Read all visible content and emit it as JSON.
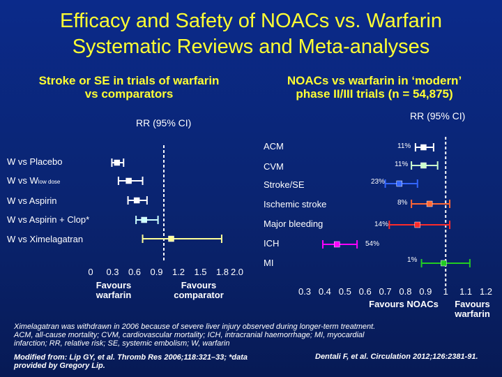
{
  "slide": {
    "title_line1": "Efficacy and Safety of NOACs vs. Warfarin",
    "title_line2": "Systematic Reviews and Meta-analyses"
  },
  "left_panel": {
    "heading_line1": "Stroke or SE in trials of warfarin",
    "heading_line2": "vs comparators",
    "rr_label": "RR (95% CI)",
    "favours_left_1": "Favours",
    "favours_left_2": "warfarin",
    "favours_right_1": "Favours",
    "favours_right_2": "comparator"
  },
  "right_panel": {
    "heading_line1": "NOACs vs warfarin in ‘modern’",
    "heading_line2": "phase II/III trials (n = 54,875)",
    "rr_label": "RR (95% CI)",
    "favours_left_1": "Favours NOACs",
    "favours_right_1": "Favours",
    "favours_right_2": "warfarin"
  },
  "colors": {
    "background": "#0a2470",
    "title": "#ffff33",
    "reference_line": "#ffffff",
    "dashed_line": "#ffffff",
    "major_bleeding": "#ff2a2a"
  },
  "chart_data": [
    {
      "type": "forest",
      "ylabel": "",
      "xlabel": "",
      "xlim": [
        0,
        2.0
      ],
      "xticks": [
        "0",
        "0.3",
        "0.6",
        "0.9",
        "1.2",
        "1.5",
        "1.8",
        "2.0"
      ],
      "reference_line": 1.0,
      "rows": [
        {
          "label": "W vs Placebo",
          "rr": 0.36,
          "lo": 0.29,
          "hi": 0.45,
          "color": "#ffffff"
        },
        {
          "label_main": "W vs W",
          "label_sub": "low dose",
          "rr": 0.52,
          "lo": 0.38,
          "hi": 0.71,
          "color": "#ffffff"
        },
        {
          "label": "W vs Aspirin",
          "rr": 0.63,
          "lo": 0.51,
          "hi": 0.77,
          "color": "#ffffff"
        },
        {
          "label": "W vs Aspirin + Clop*",
          "rr": 0.73,
          "lo": 0.62,
          "hi": 0.92,
          "color": "#ccffff"
        },
        {
          "label": "W vs Ximelagatran",
          "rr": 1.1,
          "lo": 0.71,
          "hi": 1.79,
          "color": "#ffff99"
        }
      ]
    },
    {
      "type": "forest",
      "ylabel": "",
      "xlabel": "",
      "xlim": [
        0.3,
        1.2
      ],
      "xticks": [
        "0.3",
        "0.4",
        "0.5",
        "0.6",
        "0.7",
        "0.8",
        "0.9",
        "1",
        "1.1",
        "1.2"
      ],
      "reference_line": 1.0,
      "rows": [
        {
          "label": "ACM",
          "pct": "11%",
          "rr": 0.89,
          "lo": 0.85,
          "hi": 0.94,
          "color": "#ffffff"
        },
        {
          "label": "CVM",
          "pct": "11%",
          "rr": 0.89,
          "lo": 0.83,
          "hi": 0.96,
          "color": "#ccffcc"
        },
        {
          "label": "Stroke/SE",
          "pct": "23%",
          "rr": 0.77,
          "lo": 0.7,
          "hi": 0.86,
          "color": "#3366ff"
        },
        {
          "label": "Ischemic stroke",
          "pct": "8%",
          "rr": 0.92,
          "lo": 0.83,
          "hi": 1.02,
          "color": "#ff6633"
        },
        {
          "label": "Major bleeding",
          "pct": "14%",
          "rr": 0.86,
          "lo": 0.72,
          "hi": 1.02,
          "color": "#ff2a2a"
        },
        {
          "label": "ICH",
          "pct": "54%",
          "rr": 0.46,
          "lo": 0.39,
          "hi": 0.56,
          "color": "#ff00ff"
        },
        {
          "label": "MI",
          "pct": "1%",
          "rr": 0.99,
          "lo": 0.88,
          "hi": 1.12,
          "color": "#22cc22"
        }
      ]
    }
  ],
  "footer": {
    "note_line1": "Ximelagatran was withdrawn in 2006 because of severe liver injury observed during longer-term treatment.",
    "note_line2": "ACM, all-cause mortality; CVM, cardiovascular mortality; ICH, intracranial haemorrhage; MI, myocardial",
    "note_line3": "infarction; RR, relative risk; SE, systemic embolism; W, warfarin",
    "source_left_1": "Modified from: Lip GY, et al. Thromb Res 2006;118:321–33; *data",
    "source_left_2": "provided by Gregory Lip.",
    "source_right": "Dentali F, et al. Circulation 2012;126:2381-91."
  }
}
